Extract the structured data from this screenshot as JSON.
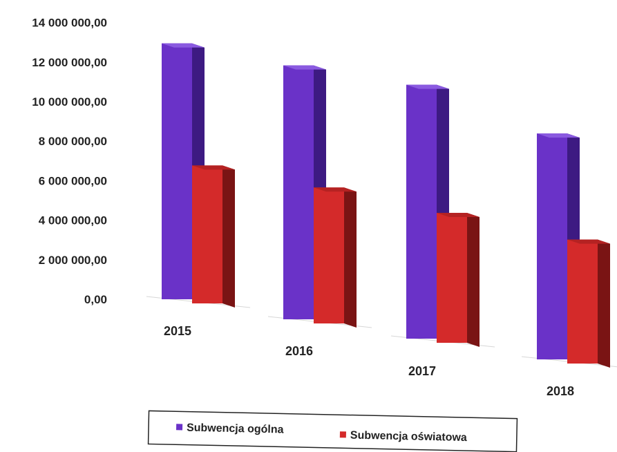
{
  "chart_data": {
    "type": "bar",
    "categories": [
      "2015",
      "2016",
      "2017",
      "2018"
    ],
    "series": [
      {
        "name": "Subwencja ogólna",
        "values": [
          12800000,
          12700000,
          12700000,
          11300000
        ]
      },
      {
        "name": "Subwencja oświatowa",
        "values": [
          6900000,
          6800000,
          6500000,
          6200000
        ]
      }
    ],
    "ylim": [
      0,
      14000000
    ],
    "yticks": [
      "0,00",
      "2 000 000,00",
      "4 000 000,00",
      "6 000 000,00",
      "8 000 000,00",
      "10 000 000,00",
      "12 000 000,00",
      "14 000 000,00"
    ],
    "legend_position": "bottom",
    "grid": false
  },
  "colors": {
    "ogolna_front": "#6a32c8",
    "ogolna_side": "#3d1a82",
    "ogolna_top": "#8a5ae0",
    "oswiatowa_front": "#d42a2a",
    "oswiatowa_side": "#7a1414",
    "oswiatowa_top": "#b52222"
  }
}
